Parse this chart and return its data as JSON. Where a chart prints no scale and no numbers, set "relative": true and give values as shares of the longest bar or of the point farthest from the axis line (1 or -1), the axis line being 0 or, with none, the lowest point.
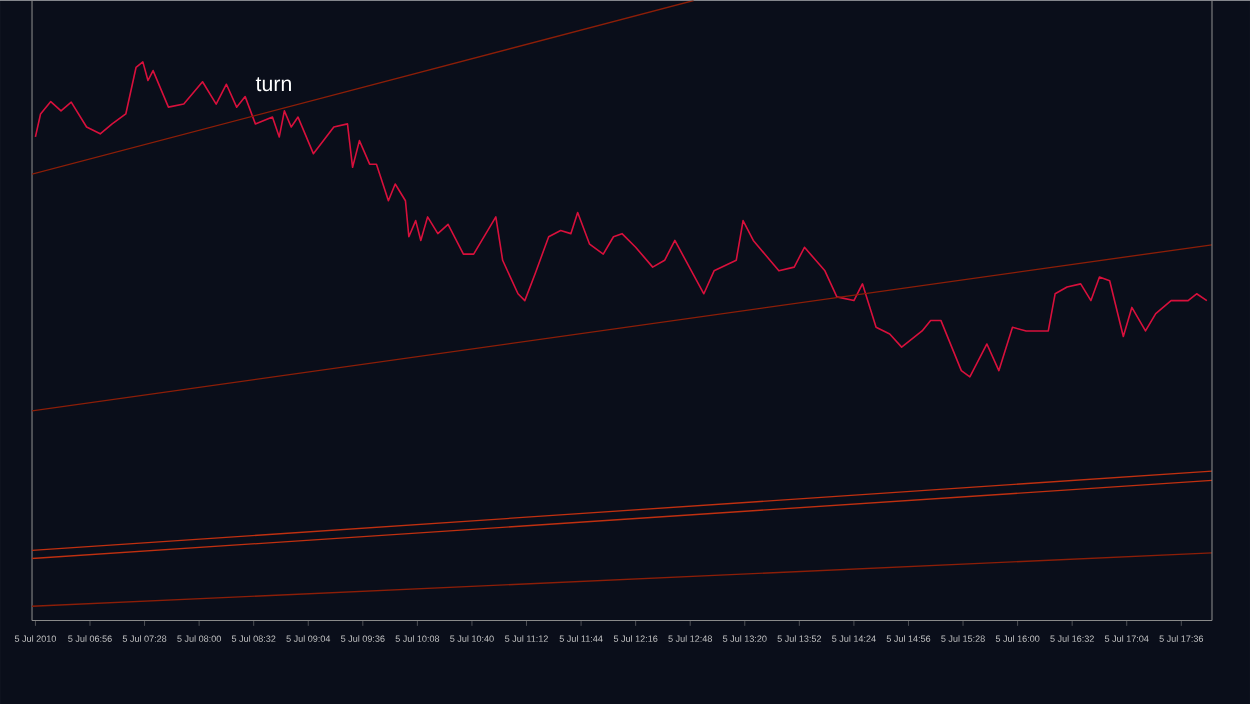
{
  "chart_data": {
    "type": "line",
    "relative": true,
    "xlim": [
      "2010-07-05T06:22",
      "2010-07-05T17:54"
    ],
    "xticks": [
      {
        "value": "2010-07-05T06:24",
        "label": "5 Jul 2010"
      },
      {
        "value": "2010-07-05T06:56",
        "label": "5 Jul 06:56"
      },
      {
        "value": "2010-07-05T07:28",
        "label": "5 Jul 07:28"
      },
      {
        "value": "2010-07-05T08:00",
        "label": "5 Jul 08:00"
      },
      {
        "value": "2010-07-05T08:32",
        "label": "5 Jul 08:32"
      },
      {
        "value": "2010-07-05T09:04",
        "label": "5 Jul 09:04"
      },
      {
        "value": "2010-07-05T09:36",
        "label": "5 Jul 09:36"
      },
      {
        "value": "2010-07-05T10:08",
        "label": "5 Jul 10:08"
      },
      {
        "value": "2010-07-05T10:40",
        "label": "5 Jul 10:40"
      },
      {
        "value": "2010-07-05T11:12",
        "label": "5 Jul 11:12"
      },
      {
        "value": "2010-07-05T11:44",
        "label": "5 Jul 11:44"
      },
      {
        "value": "2010-07-05T12:16",
        "label": "5 Jul 12:16"
      },
      {
        "value": "2010-07-05T12:48",
        "label": "5 Jul 12:48"
      },
      {
        "value": "2010-07-05T13:20",
        "label": "5 Jul 13:20"
      },
      {
        "value": "2010-07-05T13:52",
        "label": "5 Jul 13:52"
      },
      {
        "value": "2010-07-05T14:24",
        "label": "5 Jul 14:24"
      },
      {
        "value": "2010-07-05T14:56",
        "label": "5 Jul 14:56"
      },
      {
        "value": "2010-07-05T15:28",
        "label": "5 Jul 15:28"
      },
      {
        "value": "2010-07-05T16:00",
        "label": "5 Jul 16:00"
      },
      {
        "value": "2010-07-05T16:32",
        "label": "5 Jul 16:32"
      },
      {
        "value": "2010-07-05T17:04",
        "label": "5 Jul 17:04"
      },
      {
        "value": "2010-07-05T17:36",
        "label": "5 Jul 17:36"
      }
    ],
    "grid": false,
    "marker": "none",
    "line_style": "solid",
    "annotations": [
      "turn"
    ],
    "series": [
      {
        "color": "#d8103c",
        "x": [
          "2010-07-05T06:24",
          "2010-07-05T06:27",
          "2010-07-05T06:33",
          "2010-07-05T06:39",
          "2010-07-05T06:45",
          "2010-07-05T06:54",
          "2010-07-05T07:02",
          "2010-07-05T07:09",
          "2010-07-05T07:17",
          "2010-07-05T07:23",
          "2010-07-05T07:27",
          "2010-07-05T07:30",
          "2010-07-05T07:33",
          "2010-07-05T07:42",
          "2010-07-05T07:51",
          "2010-07-05T08:02",
          "2010-07-05T08:10",
          "2010-07-05T08:16",
          "2010-07-05T08:22",
          "2010-07-05T08:27",
          "2010-07-05T08:33",
          "2010-07-05T08:43",
          "2010-07-05T08:47",
          "2010-07-05T08:50",
          "2010-07-05T08:54",
          "2010-07-05T08:58",
          "2010-07-05T09:07",
          "2010-07-05T09:19",
          "2010-07-05T09:27",
          "2010-07-05T09:30",
          "2010-07-05T09:34",
          "2010-07-05T09:40",
          "2010-07-05T09:44",
          "2010-07-05T09:51",
          "2010-07-05T09:55",
          "2010-07-05T10:01",
          "2010-07-05T10:03",
          "2010-07-05T10:07",
          "2010-07-05T10:10",
          "2010-07-05T10:14",
          "2010-07-05T10:20",
          "2010-07-05T10:26",
          "2010-07-05T10:35",
          "2010-07-05T10:41",
          "2010-07-05T10:54",
          "2010-07-05T10:58",
          "2010-07-05T11:07",
          "2010-07-05T11:11",
          "2010-07-05T11:17",
          "2010-07-05T11:25",
          "2010-07-05T11:32",
          "2010-07-05T11:38",
          "2010-07-05T11:42",
          "2010-07-05T11:49",
          "2010-07-05T11:57",
          "2010-07-05T12:03",
          "2010-07-05T12:08",
          "2010-07-05T12:16",
          "2010-07-05T12:26",
          "2010-07-05T12:33",
          "2010-07-05T12:39",
          "2010-07-05T12:56",
          "2010-07-05T13:02",
          "2010-07-05T13:15",
          "2010-07-05T13:19",
          "2010-07-05T13:25",
          "2010-07-05T13:40",
          "2010-07-05T13:49",
          "2010-07-05T13:55",
          "2010-07-05T14:07",
          "2010-07-05T14:14",
          "2010-07-05T14:24",
          "2010-07-05T14:29",
          "2010-07-05T14:37",
          "2010-07-05T14:45",
          "2010-07-05T14:52",
          "2010-07-05T15:04",
          "2010-07-05T15:09",
          "2010-07-05T15:15",
          "2010-07-05T15:27",
          "2010-07-05T15:32",
          "2010-07-05T15:42",
          "2010-07-05T15:49",
          "2010-07-05T15:57",
          "2010-07-05T16:05",
          "2010-07-05T16:18",
          "2010-07-05T16:22",
          "2010-07-05T16:29",
          "2010-07-05T16:37",
          "2010-07-05T16:43",
          "2010-07-05T16:48",
          "2010-07-05T16:54",
          "2010-07-05T17:02",
          "2010-07-05T17:07",
          "2010-07-05T17:15",
          "2010-07-05T17:21",
          "2010-07-05T17:30",
          "2010-07-05T17:40",
          "2010-07-05T17:45",
          "2010-07-05T17:51"
        ],
        "values": [
          0.78,
          0.817,
          0.837,
          0.822,
          0.836,
          0.796,
          0.785,
          0.801,
          0.817,
          0.892,
          0.901,
          0.871,
          0.887,
          0.828,
          0.833,
          0.869,
          0.833,
          0.865,
          0.828,
          0.845,
          0.801,
          0.812,
          0.78,
          0.822,
          0.796,
          0.812,
          0.753,
          0.796,
          0.801,
          0.731,
          0.774,
          0.736,
          0.736,
          0.677,
          0.704,
          0.677,
          0.619,
          0.645,
          0.613,
          0.651,
          0.624,
          0.639,
          0.591,
          0.591,
          0.651,
          0.581,
          0.527,
          0.516,
          0.559,
          0.619,
          0.629,
          0.624,
          0.658,
          0.607,
          0.591,
          0.619,
          0.624,
          0.602,
          0.57,
          0.581,
          0.613,
          0.527,
          0.564,
          0.581,
          0.645,
          0.613,
          0.564,
          0.57,
          0.602,
          0.564,
          0.522,
          0.516,
          0.543,
          0.473,
          0.462,
          0.441,
          0.467,
          0.484,
          0.484,
          0.403,
          0.393,
          0.446,
          0.403,
          0.473,
          0.467,
          0.467,
          0.527,
          0.538,
          0.543,
          0.516,
          0.554,
          0.548,
          0.458,
          0.505,
          0.467,
          0.495,
          0.516,
          0.516,
          0.527,
          0.516
        ]
      },
      {
        "color": "#8c1e08",
        "x": [
          "2010-07-05T06:22",
          "2010-07-05T12:50"
        ],
        "values": [
          0.72,
          1
        ]
      },
      {
        "color": "#8c1e08",
        "x": [
          "2010-07-05T06:22",
          "2010-07-05T17:54"
        ],
        "values": [
          0.338,
          0.606
        ]
      },
      {
        "color": "#c03010",
        "x": [
          "2010-07-05T06:22",
          "2010-07-05T17:54"
        ],
        "values": [
          0.113,
          0.241
        ]
      },
      {
        "color": "#c03010",
        "x": [
          "2010-07-05T06:22",
          "2010-07-05T17:54"
        ],
        "values": [
          0.1,
          0.226
        ]
      },
      {
        "color": "#8c1e08",
        "x": [
          "2010-07-05T06:22",
          "2010-07-05T17:54"
        ],
        "values": [
          0.023,
          0.109
        ]
      }
    ]
  }
}
